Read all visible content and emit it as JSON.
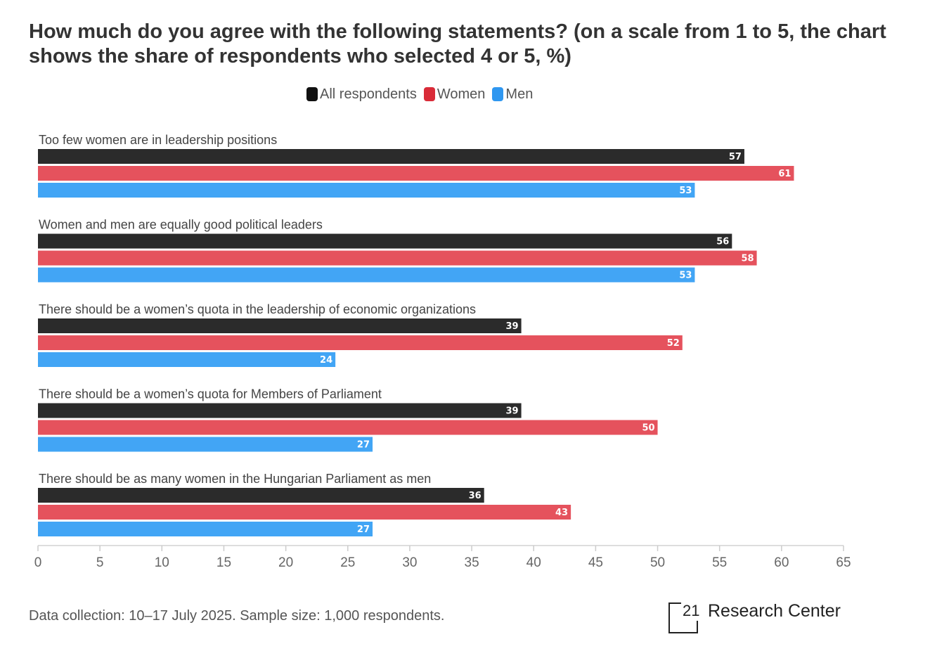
{
  "chart_data": {
    "type": "bar",
    "orientation": "horizontal",
    "title": "How much do you agree with the following statements? (on a scale from 1 to 5, the chart shows the share of respondents who selected 4 or 5, %)",
    "categories": [
      "Too few women are in leadership positions",
      "Women and men are equally good political leaders",
      "There should be a women’s quota in the leadership of economic organizations",
      "There should be a women’s quota for Members of Parliament",
      "There should be as many women in the Hungarian Parliament as men"
    ],
    "series": [
      {
        "name": "All respondents",
        "color": "#2b2b2b",
        "values": [
          57,
          56,
          39,
          39,
          36
        ]
      },
      {
        "name": "Women",
        "color": "#e5525d",
        "values": [
          61,
          58,
          52,
          50,
          43
        ]
      },
      {
        "name": "Men",
        "color": "#42a5f5",
        "values": [
          53,
          53,
          24,
          27,
          27
        ]
      }
    ],
    "xlim": [
      0,
      65
    ],
    "xticks": [
      "0",
      "5",
      "10",
      "15",
      "20",
      "25",
      "30",
      "35",
      "40",
      "45",
      "50",
      "55",
      "60",
      "65"
    ],
    "xlabel": "",
    "ylabel": "",
    "legend": "top-center",
    "grid": false
  },
  "footnote": "Data collection: 10–17 July 2025. Sample size: 1,000 respondents.",
  "logo": {
    "number": "21",
    "text": "Research Center"
  }
}
